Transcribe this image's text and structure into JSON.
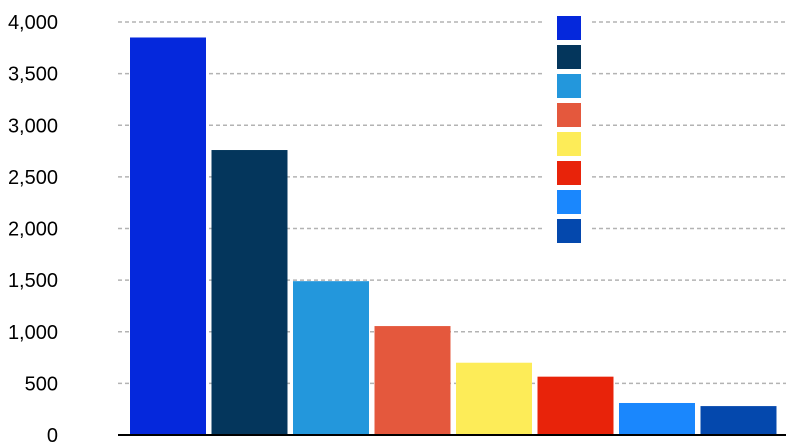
{
  "chart_data": {
    "type": "bar",
    "title": "",
    "xlabel": "",
    "ylabel": "",
    "ylim": [
      0,
      4000
    ],
    "yticks": [
      0,
      500,
      1000,
      1500,
      2000,
      2500,
      3000,
      3500,
      4000
    ],
    "ytick_labels": [
      "0",
      "500",
      "1,000",
      "1,500",
      "2,000",
      "2,500",
      "3,000",
      "3,500",
      "4,000"
    ],
    "grid": true,
    "legend": "top-right, color swatches only",
    "values": [
      3850,
      2760,
      1490,
      1055,
      700,
      565,
      310,
      280
    ],
    "colors": [
      "#0528dc",
      "#04365c",
      "#2397dc",
      "#e4583d",
      "#fdec58",
      "#e8230a",
      "#1a87fd",
      "#0448ad"
    ]
  }
}
